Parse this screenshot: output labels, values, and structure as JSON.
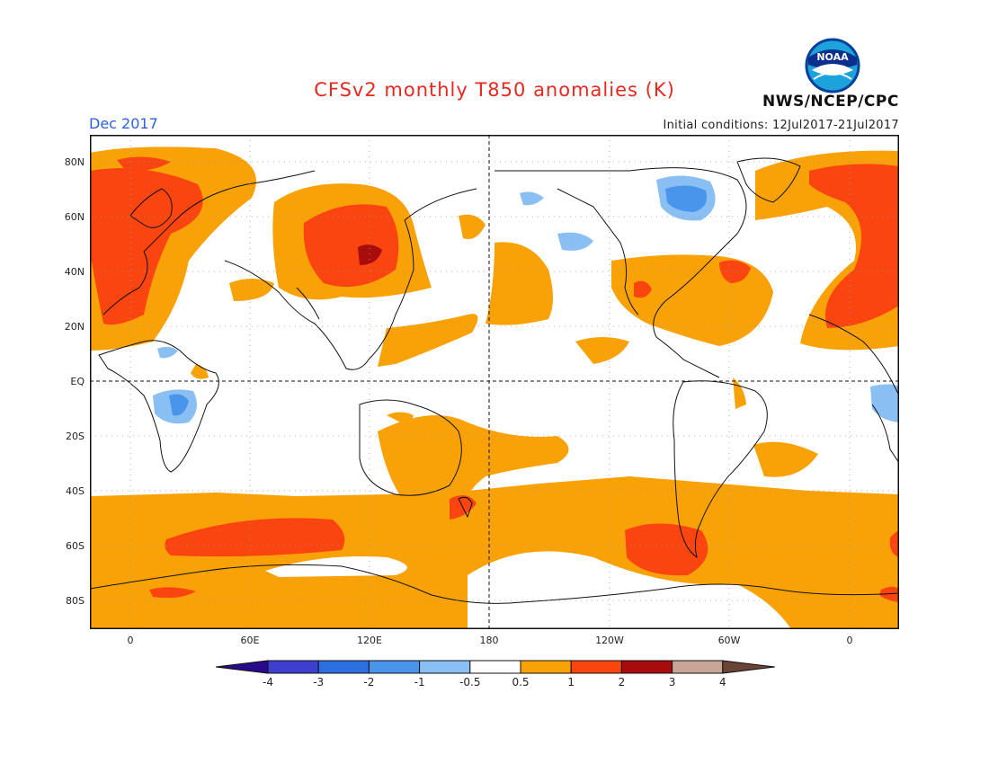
{
  "header": {
    "title": "CFSv2 monthly T850 anomalies (K)",
    "month": "Dec 2017",
    "initial_conditions": "Initial conditions: 12Jul2017-21Jul2017",
    "agency": "NWS/NCEP/CPC",
    "logo_text": "NOAA"
  },
  "axes": {
    "lat_labels": [
      "80N",
      "60N",
      "40N",
      "20N",
      "EQ",
      "20S",
      "40S",
      "60S",
      "80S"
    ],
    "lon_labels": [
      "0",
      "60E",
      "120E",
      "180",
      "120W",
      "60W",
      "0"
    ]
  },
  "legend": {
    "tick_labels": [
      "-4",
      "-3",
      "-2",
      "-1",
      "-0.5",
      "0.5",
      "1",
      "2",
      "3",
      "4"
    ],
    "colors": [
      "#2a0a8c",
      "#3f3fcf",
      "#2d6fe0",
      "#4a95ec",
      "#89bff3",
      "#ffffff",
      "#f9a207",
      "#fb4510",
      "#a80c0c",
      "#c8a596",
      "#6b4435"
    ]
  },
  "palette": {
    "warm1": "#f9a207",
    "warm2": "#fb4510",
    "warm3": "#a80c0c",
    "cool1": "#89bff3",
    "cool2": "#4a95ec",
    "title_red": "#e8281e",
    "month_blue": "#2d5fe0"
  }
}
